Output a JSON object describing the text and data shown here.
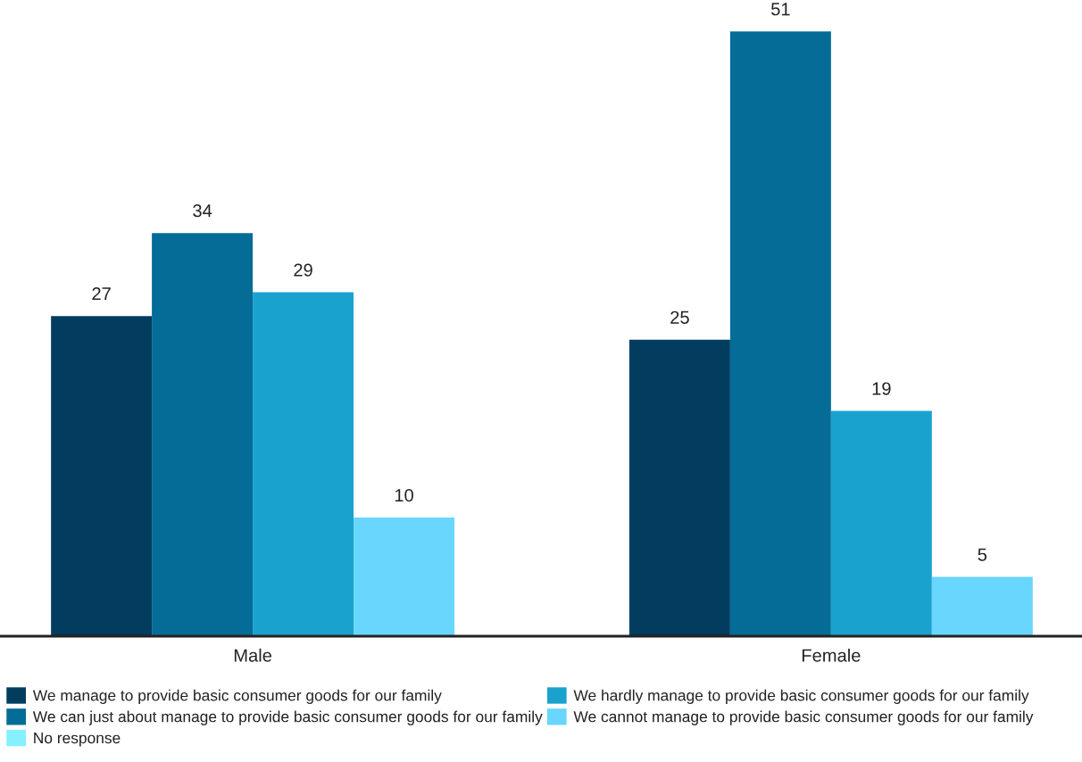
{
  "chart_data": {
    "type": "bar",
    "categories": [
      "Male",
      "Female"
    ],
    "series": [
      {
        "name": "We manage to provide basic consumer goods for our family",
        "color": "#023d60",
        "values": [
          27,
          25
        ]
      },
      {
        "name": "We can just about manage to provide basic consumer goods for our family",
        "color": "#046c96",
        "values": [
          34,
          51
        ]
      },
      {
        "name": "We hardly manage to provide basic consumer goods for our family",
        "color": "#1aa2cf",
        "values": [
          29,
          19
        ]
      },
      {
        "name": "We cannot manage to provide basic consumer goods for our family",
        "color": "#68d6fd",
        "values": [
          10,
          5
        ]
      },
      {
        "name": "No response",
        "color": "#86f0ff",
        "values": [
          null,
          null
        ]
      }
    ],
    "data_labels": true,
    "grid": false,
    "legend": "bottom left"
  }
}
